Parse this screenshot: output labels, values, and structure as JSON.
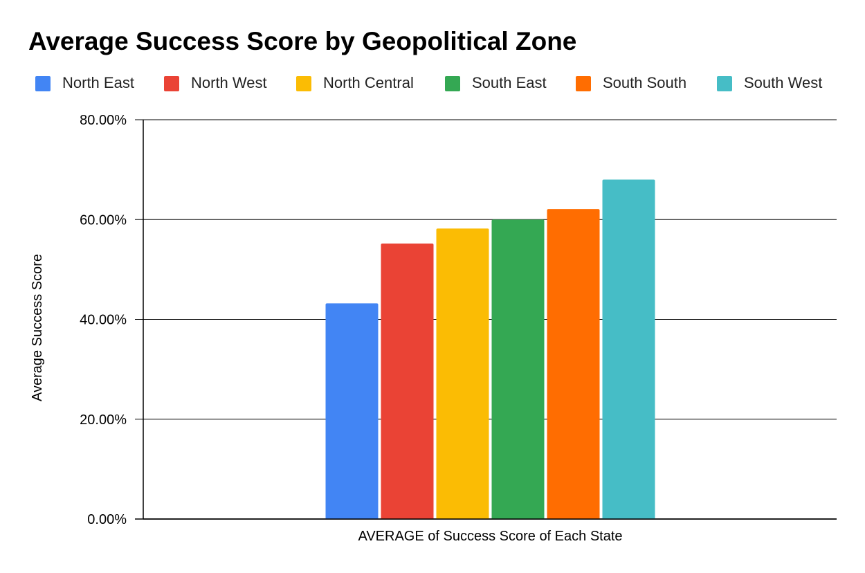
{
  "chart_data": {
    "type": "bar",
    "title": "Average Success Score by Geopolitical Zone",
    "xlabel": "AVERAGE of Success Score of Each State",
    "ylabel": "Average Success Score",
    "categories": [
      "AVERAGE of Success Score of Each State"
    ],
    "series": [
      {
        "name": "North East",
        "values": [
          43.2
        ],
        "color": "#4285f4"
      },
      {
        "name": "North West",
        "values": [
          55.2
        ],
        "color": "#ea4335"
      },
      {
        "name": "North Central",
        "values": [
          58.2
        ],
        "color": "#fbbc04"
      },
      {
        "name": "South East",
        "values": [
          60.0
        ],
        "color": "#34a853"
      },
      {
        "name": "South South",
        "values": [
          62.1
        ],
        "color": "#ff6d01"
      },
      {
        "name": "South West",
        "values": [
          68.0
        ],
        "color": "#46bdc6"
      }
    ],
    "ylim": [
      0,
      80
    ],
    "yticks": [
      0,
      20,
      40,
      60,
      80
    ],
    "ytick_labels": [
      "0.00%",
      "20.00%",
      "40.00%",
      "60.00%",
      "80.00%"
    ],
    "legend_position": "top",
    "grid": true
  }
}
